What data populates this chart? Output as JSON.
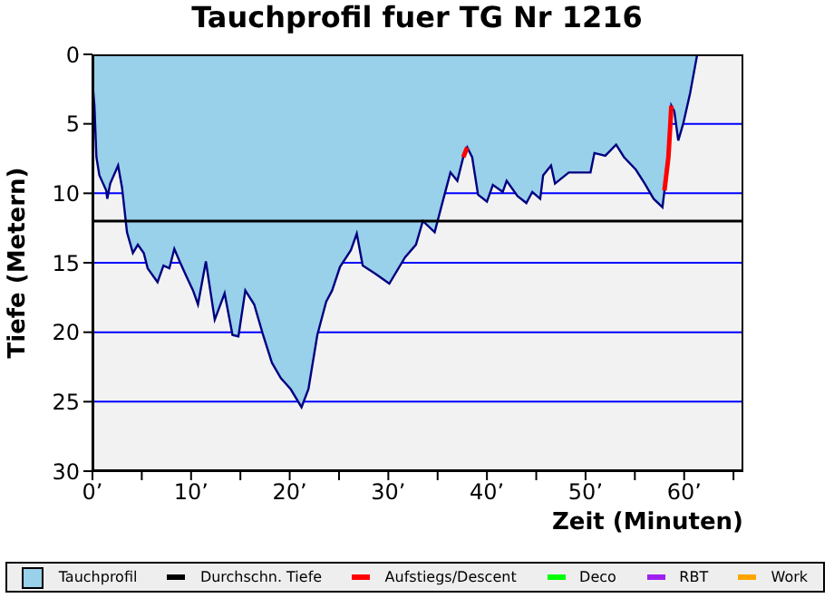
{
  "chart_data": {
    "type": "area",
    "title": "Tauchprofil fuer TG Nr 1216",
    "xlabel": "Zeit (Minuten)",
    "ylabel": "Tiefe (Metern)",
    "x": [
      0,
      0.2,
      0.4,
      0.7,
      1.4,
      1.5,
      1.8,
      2.6,
      3.0,
      3.5,
      4.1,
      4.6,
      5.2,
      5.6,
      6.6,
      7.2,
      7.8,
      8.3,
      8.9,
      9.6,
      10.2,
      10.7,
      11.5,
      12.4,
      13.4,
      14.2,
      14.8,
      15.5,
      16.4,
      17.3,
      18.2,
      19.1,
      20.1,
      21.2,
      21.9,
      22.8,
      23.7,
      24.3,
      25.1,
      26.2,
      26.8,
      27.4,
      28.7,
      30.1,
      31.7,
      32.8,
      33.5,
      34.7,
      35.4,
      36.3,
      37.0,
      37.6,
      38.0,
      38.5,
      39.1,
      40.0,
      40.6,
      41.6,
      42.0,
      43.1,
      44.0,
      44.6,
      45.4,
      45.7,
      46.5,
      46.9,
      48.3,
      50.5,
      50.9,
      52.0,
      53.1,
      53.9,
      55.1,
      56.0,
      56.9,
      57.8,
      58.0,
      58.4,
      58.6,
      58.7,
      59.0,
      59.4,
      59.9,
      60.6,
      61.3,
      61.4
    ],
    "series": [
      {
        "name": "Tauchprofil",
        "color": "#99d0ea",
        "values": [
          2.0,
          3.7,
          7.4,
          8.7,
          9.8,
          10.4,
          9.3,
          8.0,
          9.6,
          12.8,
          14.3,
          13.7,
          14.3,
          15.4,
          16.4,
          15.2,
          15.4,
          14.0,
          15.0,
          16.1,
          17.0,
          18.0,
          14.9,
          19.1,
          17.2,
          20.2,
          20.3,
          17.0,
          18.0,
          20.2,
          22.2,
          23.3,
          24.1,
          25.4,
          24.1,
          20.2,
          17.8,
          17.0,
          15.3,
          14.1,
          12.9,
          15.2,
          15.8,
          16.5,
          14.6,
          13.7,
          12.0,
          12.8,
          10.9,
          8.5,
          9.1,
          7.4,
          6.7,
          7.4,
          10.1,
          10.6,
          9.4,
          9.9,
          9.1,
          10.2,
          10.7,
          9.9,
          10.4,
          8.7,
          8.0,
          9.3,
          8.5,
          8.5,
          7.1,
          7.3,
          6.5,
          7.4,
          8.3,
          9.3,
          10.4,
          11.0,
          9.8,
          7.4,
          5.0,
          3.7,
          4.1,
          6.2,
          5.0,
          2.8,
          0.1,
          0
        ]
      },
      {
        "name": "Durchschn. Tiefe",
        "type": "line",
        "color": "#000000",
        "x": [
          0,
          66
        ],
        "values": [
          12,
          12
        ]
      },
      {
        "name": "Aufstiegs/Descent",
        "type": "line",
        "color": "#ff0000",
        "x": [
          37.6,
          38.0,
          50,
          58.0,
          58.4,
          58.6,
          58.7
        ],
        "values": [
          7.4,
          6.7,
          null,
          9.8,
          7.4,
          5.0,
          3.7
        ]
      },
      {
        "name": "Deco",
        "type": "line",
        "color": "#00ff00",
        "values": [
          null,
          null,
          null,
          null,
          null,
          null,
          null,
          null,
          null,
          null,
          null,
          null,
          null,
          null,
          null,
          null,
          null,
          null,
          null,
          null,
          null,
          null,
          null,
          null,
          null,
          null,
          null,
          null,
          null,
          null,
          null,
          null,
          null,
          null,
          null,
          null,
          null,
          null,
          null,
          null,
          null,
          null,
          null,
          null,
          null,
          null,
          null,
          null,
          null,
          null,
          null,
          null,
          null,
          null,
          null,
          null,
          null,
          null,
          null,
          null,
          null,
          null,
          null,
          null,
          null,
          null,
          null,
          null,
          null,
          null,
          null,
          null,
          null,
          null,
          null,
          null,
          null,
          null,
          null,
          null,
          null,
          null,
          null,
          null,
          null,
          null
        ]
      },
      {
        "name": "RBT",
        "type": "line",
        "color": "#a020f0",
        "values": [
          null,
          null,
          null,
          null,
          null,
          null,
          null,
          null,
          null,
          null,
          null,
          null,
          null,
          null,
          null,
          null,
          null,
          null,
          null,
          null,
          null,
          null,
          null,
          null,
          null,
          null,
          null,
          null,
          null,
          null,
          null,
          null,
          null,
          null,
          null,
          null,
          null,
          null,
          null,
          null,
          null,
          null,
          null,
          null,
          null,
          null,
          null,
          null,
          null,
          null,
          null,
          null,
          null,
          null,
          null,
          null,
          null,
          null,
          null,
          null,
          null,
          null,
          null,
          null,
          null,
          null,
          null,
          null,
          null,
          null,
          null,
          null,
          null,
          null,
          null,
          null,
          null,
          null,
          null,
          null,
          null,
          null,
          null,
          null,
          null,
          null
        ]
      },
      {
        "name": "Work",
        "type": "line",
        "color": "#ffa500",
        "values": [
          null,
          null,
          null,
          null,
          null,
          null,
          null,
          null,
          null,
          null,
          null,
          null,
          null,
          null,
          null,
          null,
          null,
          null,
          null,
          null,
          null,
          null,
          null,
          null,
          null,
          null,
          null,
          null,
          null,
          null,
          null,
          null,
          null,
          null,
          null,
          null,
          null,
          null,
          null,
          null,
          null,
          null,
          null,
          null,
          null,
          null,
          null,
          null,
          null,
          null,
          null,
          null,
          null,
          null,
          null,
          null,
          null,
          null,
          null,
          null,
          null,
          null,
          null,
          null,
          null,
          null,
          null,
          null,
          null,
          null,
          null,
          null,
          null,
          null,
          null,
          null,
          null,
          null,
          null,
          null,
          null,
          null,
          null,
          null,
          null,
          null
        ]
      }
    ],
    "xlim": [
      0,
      66
    ],
    "xticks": [
      {
        "value": 0,
        "label": "0’"
      },
      {
        "value": 5,
        "label": null
      },
      {
        "value": 10,
        "label": "10’"
      },
      {
        "value": 15,
        "label": null
      },
      {
        "value": 20,
        "label": "20’"
      },
      {
        "value": 25,
        "label": null
      },
      {
        "value": 30,
        "label": "30’"
      },
      {
        "value": 35,
        "label": null
      },
      {
        "value": 40,
        "label": "40’"
      },
      {
        "value": 45,
        "label": null
      },
      {
        "value": 50,
        "label": "50’"
      },
      {
        "value": 55,
        "label": null
      },
      {
        "value": 60,
        "label": "60’"
      },
      {
        "value": 65,
        "label": null
      }
    ],
    "ylim": [
      30,
      0
    ],
    "yticks": [
      0,
      5,
      10,
      15,
      20,
      25,
      30
    ],
    "grid": "y",
    "legend": "bottom",
    "marker": "none",
    "line_style": "solid"
  }
}
